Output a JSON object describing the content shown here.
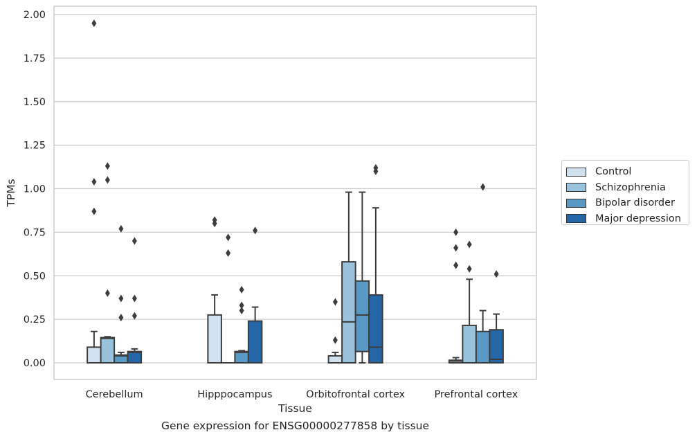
{
  "chart_data": {
    "type": "box",
    "xlabel": "Tissue",
    "ylabel": "TPMs",
    "caption": "Gene expression for ENSG00000277858 by tissue",
    "ylim": [
      -0.1,
      2.05
    ],
    "yticks": [
      "0.00",
      "0.25",
      "0.50",
      "0.75",
      "1.00",
      "1.25",
      "1.50",
      "1.75",
      "2.00"
    ],
    "grid": "horizontal",
    "legend_position": "right",
    "categories": [
      "Cerebellum",
      "Hipppocampus",
      "Orbitofrontal cortex",
      "Prefrontal cortex"
    ],
    "series": [
      {
        "name": "Control",
        "color": "#d1e1f0",
        "boxes": [
          {
            "min": 0,
            "q1": 0,
            "median": 0,
            "q3": 0.09,
            "max": 0.18,
            "outliers": [
              0.87,
              1.04,
              1.95
            ]
          },
          {
            "min": 0,
            "q1": 0,
            "median": 0,
            "q3": 0.275,
            "max": 0.39,
            "outliers": [
              0.8,
              0.82
            ]
          },
          {
            "min": 0,
            "q1": 0,
            "median": 0,
            "q3": 0.04,
            "max": 0.06,
            "outliers": [
              0.13,
              0.35
            ]
          },
          {
            "min": 0,
            "q1": 0,
            "median": 0.01,
            "q3": 0.015,
            "max": 0.03,
            "outliers": [
              0.56,
              0.66,
              0.75
            ]
          }
        ]
      },
      {
        "name": "Schizophrenia",
        "color": "#99c2dd",
        "boxes": [
          {
            "min": 0,
            "q1": 0,
            "median": 0.14,
            "q3": 0.145,
            "max": 0.15,
            "outliers": [
              0.4,
              1.05,
              1.13
            ]
          },
          {
            "min": 0,
            "q1": 0,
            "median": 0,
            "q3": 0,
            "max": 0,
            "outliers": [
              0.63,
              0.72
            ]
          },
          {
            "min": 0,
            "q1": 0,
            "median": 0.235,
            "q3": 0.58,
            "max": 0.98,
            "outliers": []
          },
          {
            "min": 0,
            "q1": 0,
            "median": 0,
            "q3": 0.215,
            "max": 0.48,
            "outliers": [
              0.54,
              0.68
            ]
          }
        ]
      },
      {
        "name": "Bipolar disorder",
        "color": "#5899c5",
        "boxes": [
          {
            "min": 0,
            "q1": 0,
            "median": 0.04,
            "q3": 0.045,
            "max": 0.06,
            "outliers": [
              0.26,
              0.37,
              0.77
            ]
          },
          {
            "min": 0,
            "q1": 0,
            "median": 0.06,
            "q3": 0.065,
            "max": 0.07,
            "outliers": [
              0.3,
              0.33,
              0.42
            ]
          },
          {
            "min": 0,
            "q1": 0.065,
            "median": 0.275,
            "q3": 0.47,
            "max": 0.98,
            "outliers": []
          },
          {
            "min": 0,
            "q1": 0,
            "median": 0,
            "q3": 0.18,
            "max": 0.3,
            "outliers": [
              1.01
            ]
          }
        ]
      },
      {
        "name": "Major depression",
        "color": "#2466a8",
        "boxes": [
          {
            "min": 0,
            "q1": 0,
            "median": 0.06,
            "q3": 0.065,
            "max": 0.08,
            "outliers": [
              0.27,
              0.37,
              0.7
            ]
          },
          {
            "min": 0,
            "q1": 0,
            "median": 0,
            "q3": 0.24,
            "max": 0.32,
            "outliers": [
              0.76
            ]
          },
          {
            "min": 0,
            "q1": 0,
            "median": 0.09,
            "q3": 0.39,
            "max": 0.89,
            "outliers": [
              1.1,
              1.12
            ]
          },
          {
            "min": 0,
            "q1": 0,
            "median": 0.02,
            "q3": 0.19,
            "max": 0.28,
            "outliers": [
              0.51
            ]
          }
        ]
      }
    ]
  }
}
